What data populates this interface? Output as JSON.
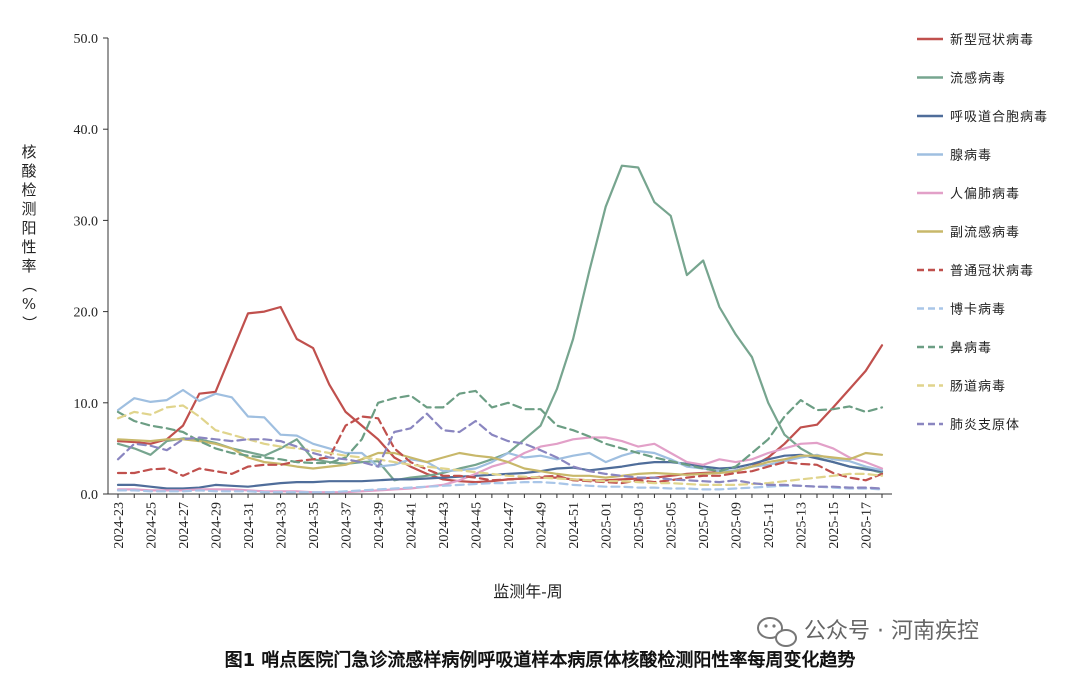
{
  "chart_data": {
    "type": "line",
    "title": "",
    "ylabel": "核酸检测阳性率（%）",
    "xlabel": "监测年-周",
    "ylim": [
      0,
      50
    ],
    "yticks": [
      "0.0",
      "10.0",
      "20.0",
      "30.0",
      "40.0",
      "50.0"
    ],
    "ytick_values": [
      0,
      10,
      20,
      30,
      40,
      50
    ],
    "xtick_labels": [
      "2024-23",
      "2024-25",
      "2024-27",
      "2024-29",
      "2024-31",
      "2024-33",
      "2024-35",
      "2024-37",
      "2024-39",
      "2024-41",
      "2024-43",
      "2024-45",
      "2024-47",
      "2024-49",
      "2024-51",
      "2025-01",
      "2025-03",
      "2025-05",
      "2025-07",
      "2025-09",
      "2025-11",
      "2025-13",
      "2025-15",
      "2025-17"
    ],
    "x": [
      "2024-23",
      "2024-24",
      "2024-25",
      "2024-26",
      "2024-27",
      "2024-28",
      "2024-29",
      "2024-30",
      "2024-31",
      "2024-32",
      "2024-33",
      "2024-34",
      "2024-35",
      "2024-36",
      "2024-37",
      "2024-38",
      "2024-39",
      "2024-40",
      "2024-41",
      "2024-42",
      "2024-43",
      "2024-44",
      "2024-45",
      "2024-46",
      "2024-47",
      "2024-48",
      "2024-49",
      "2024-50",
      "2024-51",
      "2024-52",
      "2025-01",
      "2025-02",
      "2025-03",
      "2025-04",
      "2025-05",
      "2025-06",
      "2025-07",
      "2025-08",
      "2025-09",
      "2025-10",
      "2025-11",
      "2025-12",
      "2025-13",
      "2025-14",
      "2025-15",
      "2025-16",
      "2025-17",
      "2025-18"
    ],
    "legend_position": "right",
    "series": [
      {
        "name": "新型冠状病毒",
        "color": "#c0504d",
        "dash": "solid",
        "values": [
          5.8,
          5.7,
          5.5,
          6.0,
          7.5,
          11.0,
          11.2,
          15.5,
          19.8,
          20.0,
          20.5,
          17.0,
          16.0,
          12.0,
          9.0,
          7.5,
          6.0,
          4.0,
          3.0,
          2.2,
          1.6,
          1.4,
          1.3,
          1.4,
          1.6,
          1.7,
          1.8,
          1.8,
          1.6,
          1.5,
          1.5,
          1.6,
          1.7,
          1.8,
          2.0,
          2.2,
          2.3,
          2.4,
          2.6,
          3.0,
          4.0,
          5.5,
          7.3,
          7.6,
          9.5,
          11.5,
          13.5,
          16.3
        ]
      },
      {
        "name": "流感病毒",
        "color": "#77a58f",
        "dash": "solid",
        "values": [
          5.5,
          5.0,
          4.3,
          5.8,
          6.1,
          6.0,
          5.6,
          5.0,
          4.6,
          4.2,
          5.0,
          6.0,
          3.8,
          3.5,
          3.3,
          3.5,
          3.6,
          1.5,
          1.8,
          2.0,
          2.3,
          2.8,
          3.2,
          3.8,
          4.5,
          6.0,
          7.5,
          11.5,
          17.0,
          24.5,
          31.5,
          36.0,
          35.8,
          32.0,
          30.5,
          24.0,
          25.6,
          20.5,
          17.5,
          15.0,
          10.0,
          6.5,
          5.0,
          4.0,
          3.5,
          3.0,
          2.8,
          2.3
        ]
      },
      {
        "name": "呼吸道合胞病毒",
        "color": "#4f6d9a",
        "dash": "solid",
        "values": [
          1.0,
          1.0,
          0.8,
          0.6,
          0.6,
          0.7,
          1.0,
          0.9,
          0.8,
          1.0,
          1.2,
          1.3,
          1.3,
          1.4,
          1.4,
          1.4,
          1.5,
          1.6,
          1.6,
          1.7,
          1.8,
          1.9,
          2.0,
          2.1,
          2.2,
          2.3,
          2.5,
          2.8,
          2.9,
          2.6,
          2.8,
          3.0,
          3.3,
          3.5,
          3.5,
          3.3,
          3.0,
          2.8,
          2.9,
          3.3,
          3.8,
          4.2,
          4.3,
          3.9,
          3.5,
          3.0,
          2.7,
          2.5
        ]
      },
      {
        "name": "腺病毒",
        "color": "#9fbfe0",
        "dash": "solid",
        "values": [
          9.2,
          10.5,
          10.1,
          10.3,
          11.4,
          10.2,
          11.0,
          10.6,
          8.5,
          8.4,
          6.5,
          6.4,
          5.5,
          5.0,
          4.5,
          4.5,
          3.0,
          3.2,
          3.8,
          3.5,
          2.5,
          2.6,
          2.8,
          3.5,
          4.5,
          4.0,
          4.2,
          3.8,
          4.2,
          4.5,
          3.5,
          4.2,
          4.7,
          4.5,
          3.8,
          3.0,
          2.8,
          2.5,
          2.6,
          3.0,
          3.2,
          3.6,
          4.0,
          4.3,
          3.8,
          3.6,
          3.0,
          2.6
        ]
      },
      {
        "name": "人偏肺病毒",
        "color": "#e2a0c8",
        "dash": "solid",
        "values": [
          0.5,
          0.5,
          0.4,
          0.4,
          0.4,
          0.5,
          0.5,
          0.5,
          0.4,
          0.3,
          0.3,
          0.3,
          0.2,
          0.2,
          0.2,
          0.3,
          0.4,
          0.5,
          0.6,
          0.8,
          1.0,
          1.5,
          2.2,
          3.0,
          3.5,
          4.5,
          5.2,
          5.5,
          6.0,
          6.2,
          6.2,
          5.8,
          5.2,
          5.5,
          4.5,
          3.5,
          3.2,
          3.8,
          3.5,
          3.8,
          4.5,
          5.0,
          5.5,
          5.6,
          5.0,
          4.0,
          3.5,
          2.8
        ]
      },
      {
        "name": "副流感病毒",
        "color": "#c8b86a",
        "dash": "solid",
        "values": [
          6.0,
          5.9,
          5.8,
          6.0,
          6.0,
          5.8,
          5.5,
          5.0,
          4.0,
          3.5,
          3.3,
          3.0,
          2.8,
          3.0,
          3.2,
          3.8,
          4.5,
          4.5,
          4.0,
          3.5,
          4.0,
          4.5,
          4.2,
          4.0,
          3.5,
          2.8,
          2.5,
          2.2,
          2.0,
          2.0,
          1.8,
          2.0,
          2.2,
          2.3,
          2.2,
          2.1,
          2.2,
          2.3,
          2.5,
          3.0,
          3.5,
          3.8,
          4.2,
          4.2,
          4.0,
          3.8,
          4.5,
          4.3
        ]
      },
      {
        "name": "普通冠状病毒",
        "color": "#c0504d",
        "dash": "dash",
        "values": [
          2.3,
          2.3,
          2.7,
          2.8,
          2.0,
          2.8,
          2.5,
          2.2,
          3.0,
          3.2,
          3.2,
          3.6,
          3.8,
          4.0,
          7.5,
          8.5,
          8.3,
          5.0,
          3.5,
          2.7,
          2.0,
          2.0,
          1.8,
          1.5,
          1.6,
          1.7,
          1.9,
          2.0,
          1.5,
          1.4,
          1.3,
          1.2,
          1.5,
          1.3,
          1.5,
          1.8,
          2.0,
          2.0,
          2.3,
          2.5,
          3.0,
          3.5,
          3.3,
          3.2,
          2.3,
          1.8,
          1.5,
          2.2
        ]
      },
      {
        "name": "博卡病毒",
        "color": "#a9c6e8",
        "dash": "dash",
        "values": [
          0.4,
          0.4,
          0.3,
          0.3,
          0.3,
          0.4,
          0.3,
          0.3,
          0.3,
          0.2,
          0.2,
          0.2,
          0.2,
          0.2,
          0.3,
          0.4,
          0.5,
          0.6,
          0.7,
          0.8,
          0.9,
          1.0,
          1.1,
          1.2,
          1.2,
          1.3,
          1.3,
          1.2,
          1.0,
          0.9,
          0.8,
          0.8,
          0.7,
          0.7,
          0.6,
          0.6,
          0.5,
          0.5,
          0.6,
          0.7,
          0.8,
          0.9,
          0.9,
          0.8,
          0.7,
          0.6,
          0.6,
          0.5
        ]
      },
      {
        "name": "鼻病毒",
        "color": "#6c9e84",
        "dash": "dash",
        "values": [
          9.0,
          8.0,
          7.5,
          7.2,
          6.8,
          5.8,
          5.0,
          4.5,
          4.2,
          4.0,
          3.8,
          3.5,
          3.4,
          3.4,
          4.0,
          6.0,
          10.0,
          10.5,
          10.8,
          9.5,
          9.5,
          11.0,
          11.3,
          9.5,
          10.0,
          9.3,
          9.3,
          7.5,
          7.0,
          6.3,
          5.5,
          5.0,
          4.5,
          4.0,
          3.6,
          3.2,
          2.8,
          2.5,
          3.0,
          4.5,
          6.0,
          8.5,
          10.3,
          9.2,
          9.3,
          9.6,
          9.0,
          9.5
        ]
      },
      {
        "name": "肠道病毒",
        "color": "#e0d48c",
        "dash": "dash",
        "values": [
          8.3,
          9.0,
          8.7,
          9.5,
          9.7,
          8.5,
          7.0,
          6.5,
          6.0,
          5.5,
          5.2,
          5.0,
          4.8,
          4.5,
          4.2,
          4.0,
          3.8,
          3.5,
          3.2,
          3.0,
          2.8,
          2.6,
          2.4,
          2.2,
          2.0,
          1.9,
          1.8,
          1.7,
          1.6,
          1.5,
          1.4,
          1.4,
          1.3,
          1.2,
          1.2,
          1.1,
          1.0,
          1.0,
          1.0,
          1.1,
          1.2,
          1.4,
          1.6,
          1.8,
          2.0,
          2.2,
          2.2,
          2.0
        ]
      },
      {
        "name": "肺炎支原体",
        "color": "#8a86c0",
        "dash": "dash",
        "values": [
          3.8,
          5.5,
          5.3,
          4.8,
          6.0,
          6.2,
          6.0,
          5.8,
          6.0,
          6.0,
          5.8,
          5.2,
          4.5,
          4.0,
          3.8,
          3.5,
          3.0,
          6.8,
          7.2,
          8.8,
          7.0,
          6.8,
          8.0,
          6.5,
          5.8,
          5.5,
          4.8,
          4.0,
          3.0,
          2.5,
          2.2,
          2.0,
          1.8,
          1.8,
          1.6,
          1.5,
          1.4,
          1.3,
          1.5,
          1.2,
          1.0,
          1.0,
          0.9,
          0.8,
          0.8,
          0.7,
          0.7,
          0.6
        ]
      }
    ]
  },
  "caption": "图1 哨点医院门急诊流感样病例呼吸道样本病原体核酸检测阳性率每周变化趋势",
  "watermark": "公众号 · 河南疾控"
}
